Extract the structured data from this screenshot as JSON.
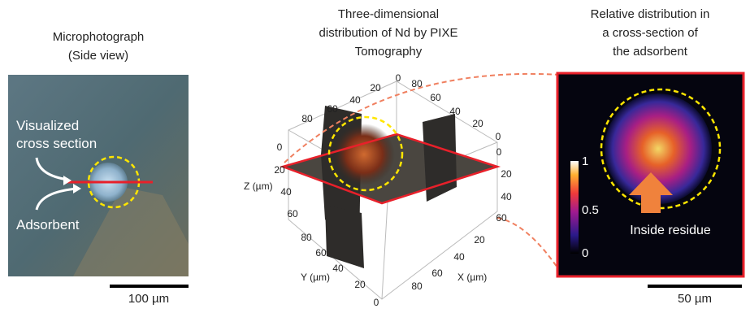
{
  "panel_left": {
    "title": [
      "Microphotograph",
      "(Side view)"
    ],
    "labels": [
      "Visualized",
      "cross section",
      "Adsorbent"
    ],
    "scale_bar": "100 µm"
  },
  "panel_middle": {
    "title": [
      "Three-dimensional",
      "distribution of Nd by PIXE",
      "Tomography"
    ],
    "axis_labels": [
      "Z (µm)",
      "Y (µm)",
      "X (µm)"
    ],
    "top_left_ticks": [
      "0",
      "20",
      "40",
      "60",
      "80"
    ],
    "top_right_ticks": [
      "80",
      "60",
      "40",
      "20",
      "0"
    ],
    "left_z_ticks": [
      "0",
      "20",
      "40",
      "60"
    ],
    "right_z_ticks": [
      "0",
      "20",
      "40",
      "60"
    ],
    "y_ticks": [
      "80",
      "60",
      "40",
      "20",
      "0"
    ],
    "x_ticks": [
      "20",
      "40",
      "60",
      "80"
    ]
  },
  "panel_right": {
    "title": [
      "Relative distribution in",
      "a cross-section of",
      "the adsorbent"
    ],
    "colorbar_labels": [
      "1",
      "0.5",
      "0"
    ],
    "annotation": "Inside residue",
    "scale_bar": "50 µm"
  }
}
